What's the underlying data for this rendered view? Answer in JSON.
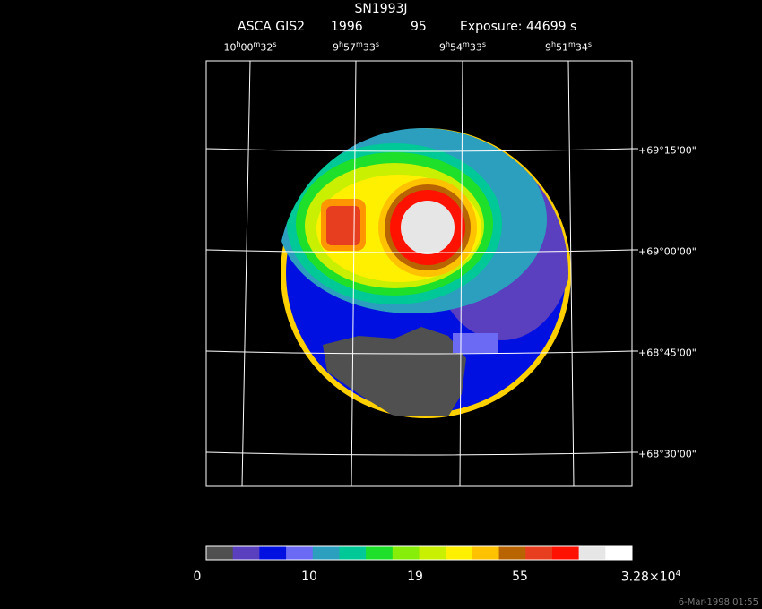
{
  "title": "SN1993J",
  "subtitle": {
    "instrument": "ASCA GIS2",
    "year": "1996",
    "seq": "95",
    "exposure": "Exposure: 44699 s"
  },
  "ra_axis": [
    {
      "h": "10",
      "m": "00",
      "s": "32"
    },
    {
      "h": "9",
      "m": "57",
      "s": "33"
    },
    {
      "h": "9",
      "m": "54",
      "s": "33"
    },
    {
      "h": "9",
      "m": "51",
      "s": "34"
    }
  ],
  "dec_axis": [
    "+69°15'00\"",
    "+69°00'00\"",
    "+68°45'00\"",
    "+68°30'00\""
  ],
  "colorbar": {
    "colors": [
      "#505050",
      "#5a3fbf",
      "#0010e0",
      "#6a6af4",
      "#2c9fbf",
      "#00c896",
      "#1ee02a",
      "#86ee08",
      "#c8f000",
      "#fff000",
      "#ffc200",
      "#b86400",
      "#e83e20",
      "#ff1200",
      "#e6e6e6",
      "#ffffff"
    ],
    "labels": [
      "0",
      "10",
      "19",
      "55",
      "3.28×10"
    ],
    "label_exp": "4"
  },
  "footer": "6-Mar-1998 01:55"
}
